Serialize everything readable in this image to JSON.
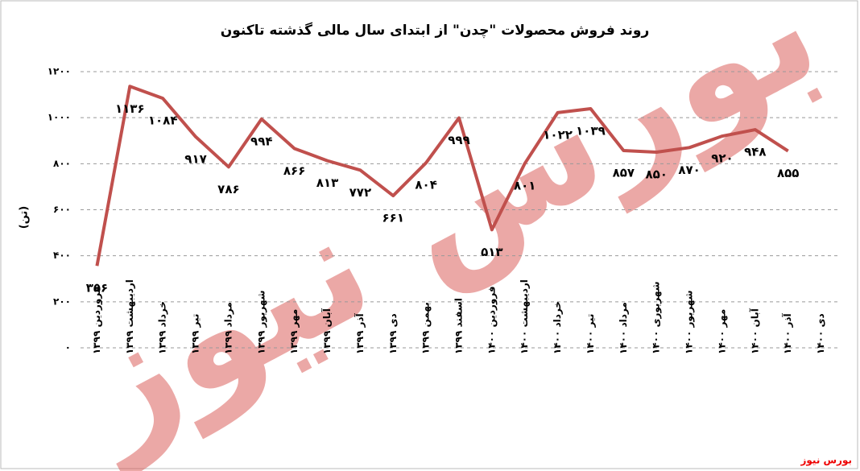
{
  "chart_data": {
    "type": "line",
    "title": "روند فروش محصولات \"چدن\" از ابتدای سال مالی گذشته تاکنون",
    "y_label": "(تن)",
    "source": "بورس نیوز",
    "watermark": "بورس نیوز",
    "categories": [
      "فروردین ۱۳۹۹",
      "اردیبهشت ۱۳۹۹",
      "خرداد ۱۳۹۹",
      "تیر ۱۳۹۹",
      "مرداد ۱۳۹۹",
      "شهریور ۱۳۹۹",
      "مهر ۱۳۹۹",
      "آبان ۱۳۹۹",
      "آذر ۱۳۹۹",
      "دی ۱۳۹۹",
      "بهمن ۱۳۹۹",
      "اسفند ۱۳۹۹",
      "فروردین ۱۴۰۰",
      "اردیبهشت ۱۴۰۰",
      "خرداد ۱۴۰۰",
      "تیر ۱۴۰۰",
      "مرداد ۱۴۰۰",
      "شهریوری ۱۴۰۰",
      "شهریور ۱۴۰۰",
      "مهر ۱۴۰۰",
      "آبان ۱۴۰۰",
      "آذر ۱۴۰۰",
      "دی ۱۴۰۰"
    ],
    "series": [
      {
        "name": "چدن",
        "color": "#c0504d",
        "values": [
          356,
          1136,
          1084,
          917,
          786,
          994,
          866,
          813,
          772,
          661,
          804,
          999,
          513,
          801,
          1022,
          1039,
          857,
          850,
          870,
          920,
          948,
          855,
          null
        ],
        "value_labels": [
          "۳۵۶",
          "۱۱۳۶",
          "۱۰۸۴",
          "۹۱۷",
          "۷۸۶",
          "۹۹۴",
          "۸۶۶",
          "۸۱۳",
          "۷۷۲",
          "۶۶۱",
          "۸۰۴",
          "۹۹۹",
          "۵۱۳",
          "۸۰۱",
          "۱۰۲۲",
          "۱۰۳۹",
          "۸۵۷",
          "۸۵۰",
          "۸۷۰",
          "۹۲۰",
          "۹۴۸",
          "۸۵۵",
          null
        ]
      }
    ],
    "ylim": [
      0,
      1200
    ],
    "yticks": [
      {
        "value": 0,
        "label": "۰"
      },
      {
        "value": 200,
        "label": "۲۰۰"
      },
      {
        "value": 400,
        "label": "۴۰۰"
      },
      {
        "value": 600,
        "label": "۶۰۰"
      },
      {
        "value": 800,
        "label": "۸۰۰"
      },
      {
        "value": 1000,
        "label": "۱۰۰۰"
      },
      {
        "value": 1200,
        "label": "۱۲۰۰"
      }
    ],
    "grid": true
  }
}
